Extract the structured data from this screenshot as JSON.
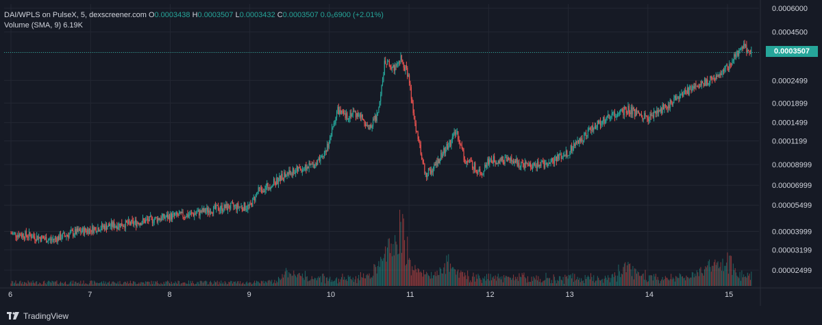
{
  "header": {
    "symbol": "DAI/WPLS on PulseX, 5, dexscreener.com",
    "o_label": "O",
    "o_value": "0.0003438",
    "h_label": "H",
    "h_value": "0.0003507",
    "l_label": "L",
    "l_value": "0.0003432",
    "c_label": "C",
    "c_value": "0.0003507",
    "change": "0.0₅6900 (+2.01%)",
    "volume_label": "Volume (SMA, 9)",
    "volume_value": "6.19K"
  },
  "price_tag": "0.0003507",
  "footer": {
    "brand": "TradingView"
  },
  "colors": {
    "background": "#161a25",
    "up": "#26a69a",
    "down": "#ef5350",
    "grid": "#232733",
    "text": "#d1d4dc"
  },
  "chart_data": {
    "type": "candlestick",
    "title": "DAI/WPLS on PulseX, 5, dexscreener.com",
    "y_scale": "log",
    "y_ticks": [
      "0.0006000",
      "0.0004500",
      "0.0003507",
      "0.0002499",
      "0.0001899",
      "0.0001499",
      "0.0001199",
      "0.00008999",
      "0.00006999",
      "0.00005499",
      "0.00003999",
      "0.00003199",
      "0.00002499"
    ],
    "x_ticks": [
      "6",
      "7",
      "8",
      "9",
      "10",
      "11",
      "12",
      "13",
      "14",
      "15"
    ],
    "last_price": 0.0003507,
    "close_series": {
      "x": [
        6.0,
        6.25,
        6.5,
        6.75,
        7.0,
        7.25,
        7.5,
        7.75,
        8.0,
        8.25,
        8.5,
        8.75,
        9.0,
        9.1,
        9.25,
        9.5,
        9.75,
        9.9,
        10.0,
        10.1,
        10.2,
        10.3,
        10.4,
        10.5,
        10.6,
        10.7,
        10.8,
        10.9,
        11.0,
        11.05,
        11.1,
        11.2,
        11.3,
        11.4,
        11.5,
        11.6,
        11.7,
        11.8,
        11.9,
        12.0,
        12.25,
        12.5,
        12.75,
        13.0,
        13.25,
        13.5,
        13.75,
        14.0,
        14.25,
        14.5,
        14.75,
        15.0,
        15.1,
        15.2,
        15.3
      ],
      "y": [
        3.9e-05,
        3.8e-05,
        3.6e-05,
        3.9e-05,
        4.1e-05,
        4.3e-05,
        4.4e-05,
        4.6e-05,
        4.8e-05,
        4.9e-05,
        5.2e-05,
        5.4e-05,
        5.4e-05,
        6.5e-05,
        7e-05,
        8.2e-05,
        8.8e-05,
        9.5e-05,
        0.00012,
        0.000175,
        0.00016,
        0.00017,
        0.00016,
        0.00014,
        0.000165,
        0.00032,
        0.00029,
        0.000325,
        0.00026,
        0.00017,
        0.00013,
        8e-05,
        8.5e-05,
        0.0001,
        0.000115,
        0.000135,
        9.5e-05,
        9e-05,
        8e-05,
        9.5e-05,
        9.5e-05,
        8.8e-05,
        9.2e-05,
        0.000105,
        0.000135,
        0.00016,
        0.000175,
        0.00016,
        0.000185,
        0.00022,
        0.00025,
        0.00029,
        0.00034,
        0.00038,
        0.0003507
      ]
    },
    "volume_peaks": [
      {
        "x": 9.5,
        "value": 0.2
      },
      {
        "x": 10.7,
        "value": 0.45
      },
      {
        "x": 10.9,
        "value": 1.0
      },
      {
        "x": 11.5,
        "value": 0.35
      },
      {
        "x": 13.75,
        "value": 0.3
      },
      {
        "x": 14.75,
        "value": 0.3
      },
      {
        "x": 15.0,
        "value": 0.4
      }
    ]
  }
}
